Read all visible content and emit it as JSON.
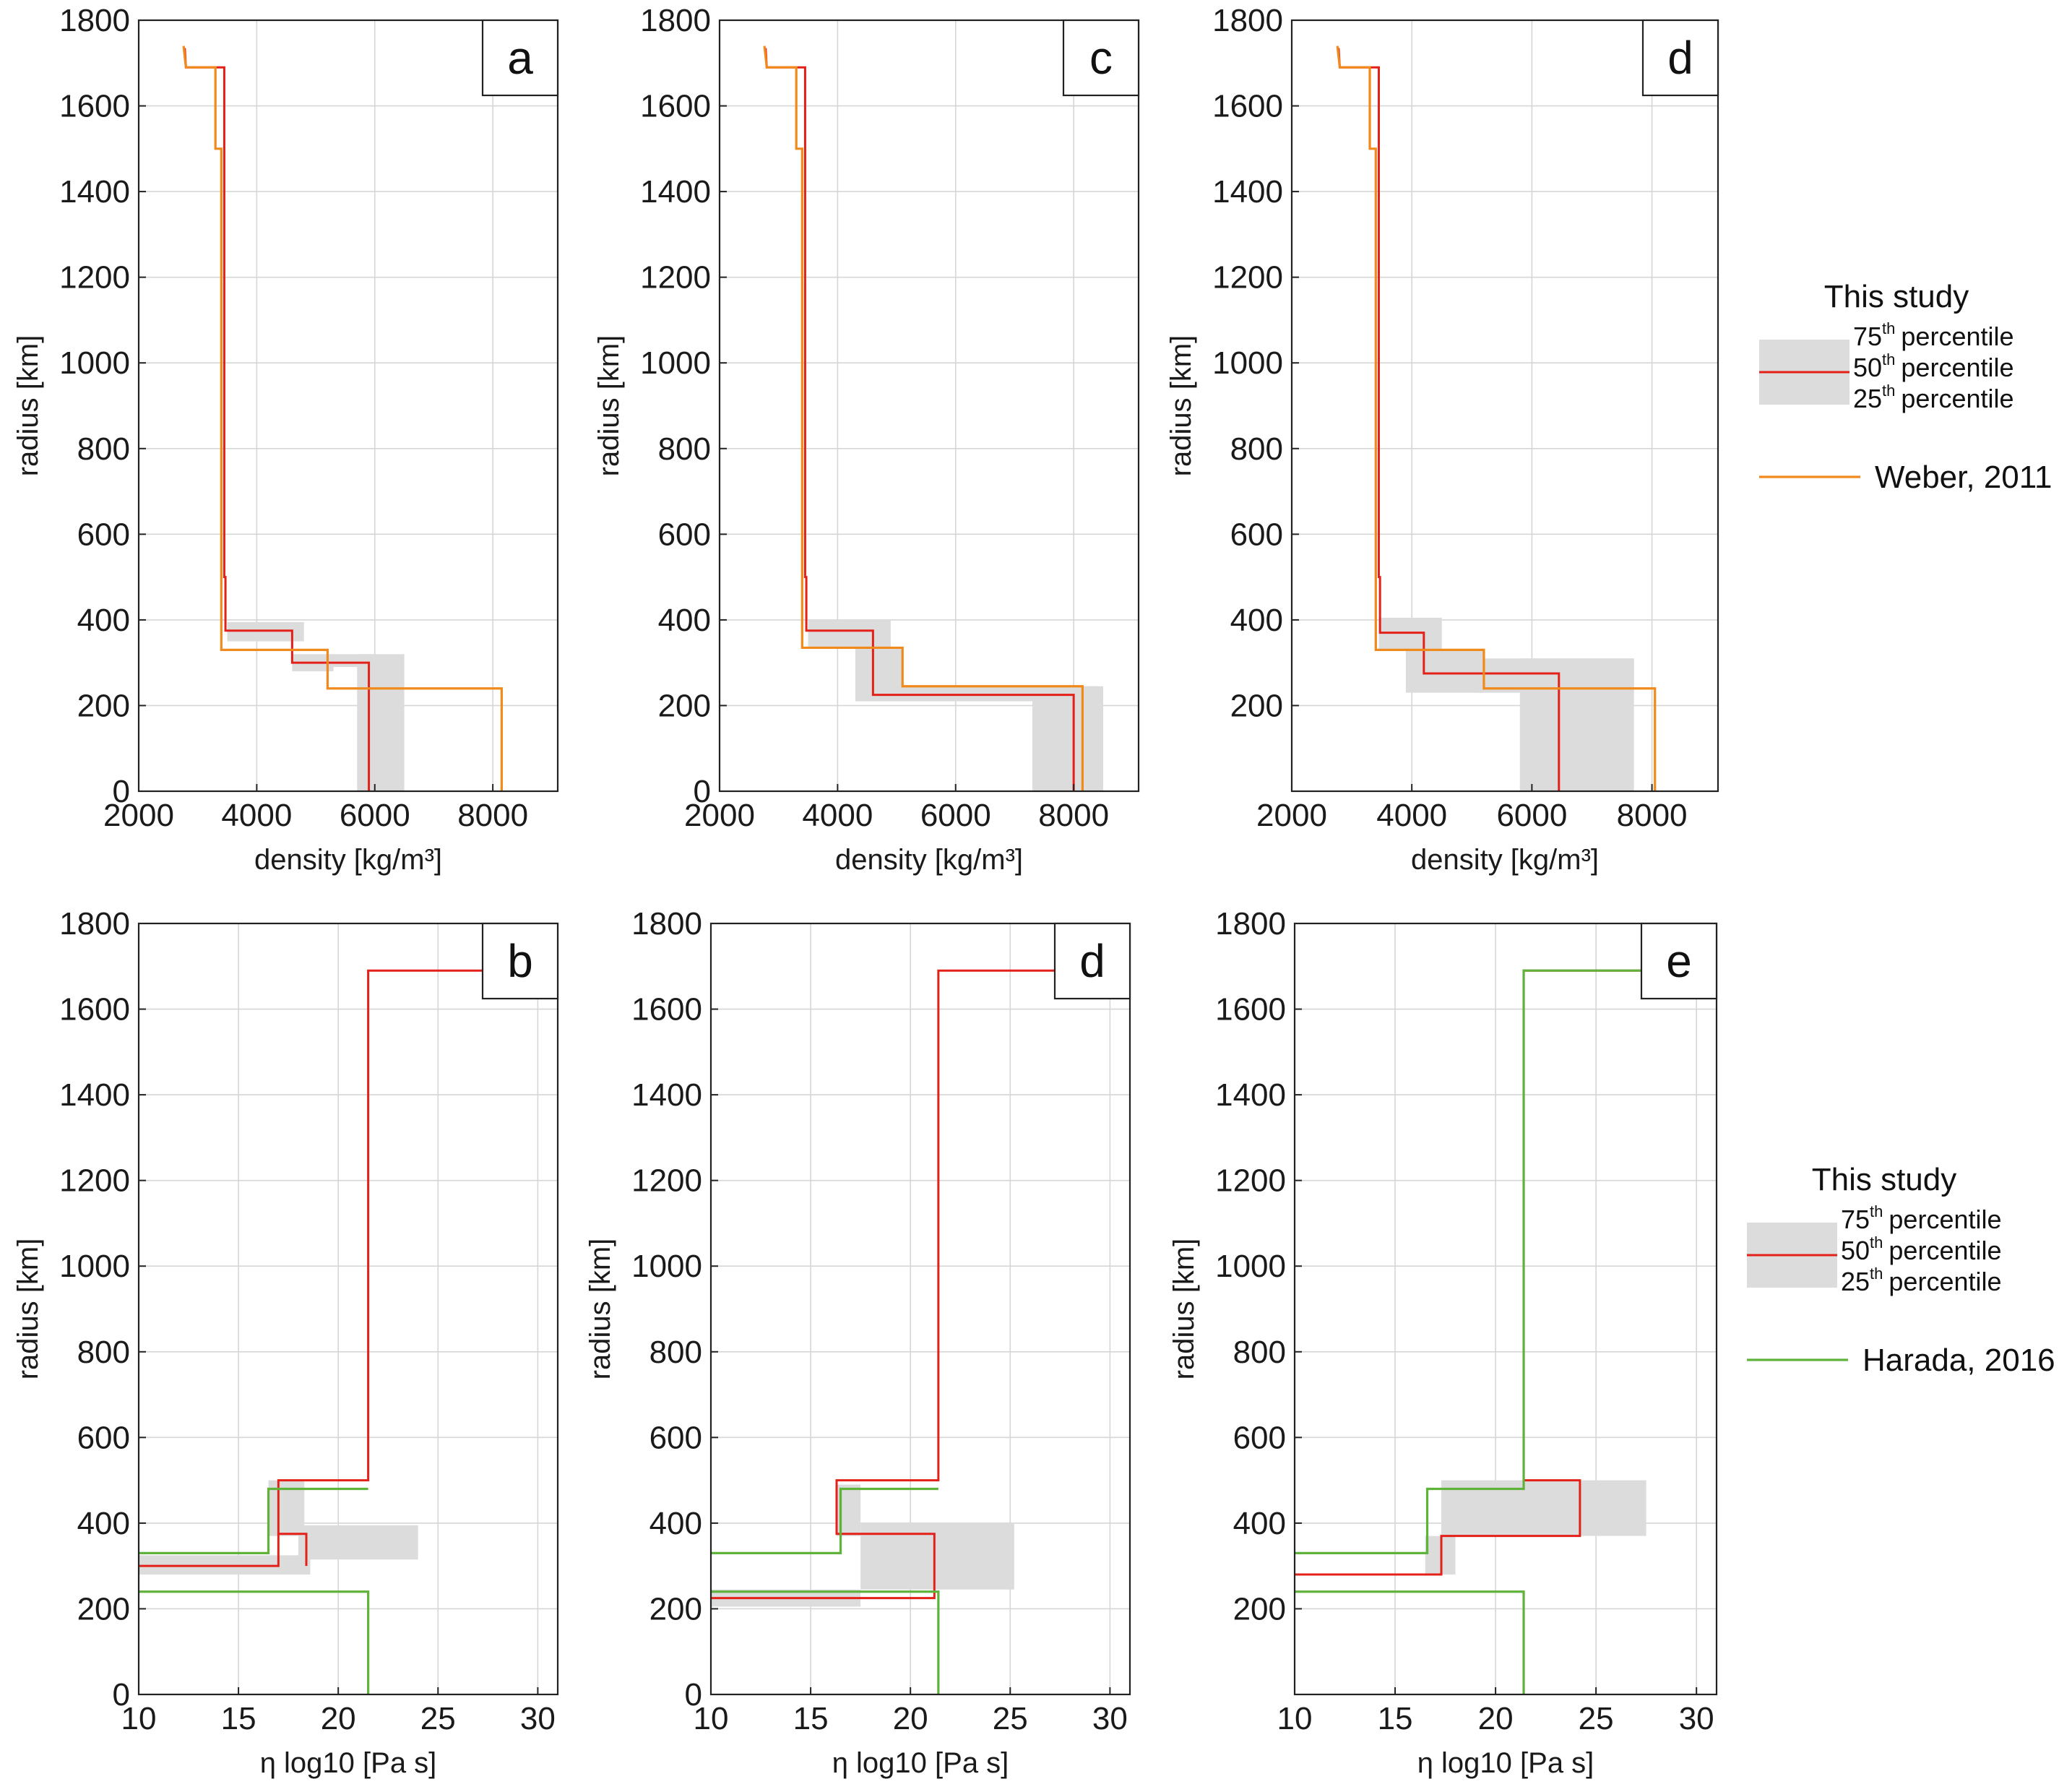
{
  "colors": {
    "median": "#e32119",
    "band": "#dcdcdc",
    "weber": "#f18a1c",
    "harada": "#5fb33b",
    "grid": "#d6d6d6",
    "axis": "#222222"
  },
  "legends": [
    {
      "title": "This study",
      "percentiles": [
        {
          "num": "75",
          "sup": "th",
          "text": "percentile"
        },
        {
          "num": "50",
          "sup": "th",
          "text": "percentile"
        },
        {
          "num": "25",
          "sup": "th",
          "text": "percentile"
        }
      ],
      "reference": "Weber, 2011",
      "reference_color_key": "weber"
    },
    {
      "title": "This study",
      "percentiles": [
        {
          "num": "75",
          "sup": "th",
          "text": "percentile"
        },
        {
          "num": "50",
          "sup": "th",
          "text": "percentile"
        },
        {
          "num": "25",
          "sup": "th",
          "text": "percentile"
        }
      ],
      "reference": "Harada, 2016",
      "reference_color_key": "harada"
    }
  ],
  "chart_data": [
    {
      "id": "a",
      "label": "a",
      "type": "line",
      "xlabel": "density [kg/m³]",
      "ylabel": "radius [km]",
      "xlim": [
        2000,
        9100
      ],
      "ylim": [
        0,
        1800
      ],
      "xticks": [
        2000,
        4000,
        6000,
        8000
      ],
      "yticks": [
        0,
        200,
        400,
        600,
        800,
        1000,
        1200,
        1400,
        1600,
        1800
      ],
      "grid": true,
      "bands": [
        [
          3500,
          4800,
          350,
          395
        ],
        [
          4600,
          5300,
          280,
          320
        ],
        [
          5200,
          6000,
          290,
          320
        ],
        [
          5700,
          6500,
          0,
          320
        ]
      ],
      "series": [
        {
          "color_key": "median",
          "points": [
            [
              2780,
              1735
            ],
            [
              2800,
              1690
            ],
            [
              3450,
              1690
            ],
            [
              3450,
              500
            ],
            [
              3470,
              500
            ],
            [
              3470,
              375
            ],
            [
              4600,
              375
            ],
            [
              4600,
              300
            ],
            [
              5900,
              300
            ],
            [
              5900,
              0
            ]
          ]
        },
        {
          "color_key": "weber",
          "points": [
            [
              2760,
              1740
            ],
            [
              2800,
              1690
            ],
            [
              3300,
              1690
            ],
            [
              3300,
              1500
            ],
            [
              3400,
              1500
            ],
            [
              3400,
              330
            ],
            [
              5200,
              330
            ],
            [
              5200,
              240
            ],
            [
              8150,
              240
            ],
            [
              8150,
              0
            ]
          ]
        }
      ]
    },
    {
      "id": "c",
      "label": "c",
      "type": "line",
      "xlabel": "density [kg/m³]",
      "ylabel": "radius [km]",
      "xlim": [
        2000,
        9100
      ],
      "ylim": [
        0,
        1800
      ],
      "xticks": [
        2000,
        4000,
        6000,
        8000
      ],
      "yticks": [
        0,
        200,
        400,
        600,
        800,
        1000,
        1200,
        1400,
        1600,
        1800
      ],
      "grid": true,
      "bands": [
        [
          3500,
          4900,
          335,
          400
        ],
        [
          4300,
          5100,
          210,
          335
        ],
        [
          5000,
          8400,
          210,
          245
        ],
        [
          7300,
          8500,
          0,
          245
        ]
      ],
      "series": [
        {
          "color_key": "median",
          "points": [
            [
              2780,
              1735
            ],
            [
              2800,
              1690
            ],
            [
              3450,
              1690
            ],
            [
              3450,
              500
            ],
            [
              3470,
              500
            ],
            [
              3470,
              375
            ],
            [
              4600,
              375
            ],
            [
              4600,
              225
            ],
            [
              8000,
              225
            ],
            [
              8000,
              0
            ]
          ]
        },
        {
          "color_key": "weber",
          "points": [
            [
              2760,
              1740
            ],
            [
              2800,
              1690
            ],
            [
              3300,
              1690
            ],
            [
              3300,
              1500
            ],
            [
              3400,
              1500
            ],
            [
              3400,
              335
            ],
            [
              5100,
              335
            ],
            [
              5100,
              245
            ],
            [
              8150,
              245
            ],
            [
              8150,
              0
            ]
          ]
        }
      ]
    },
    {
      "id": "d-top",
      "label": "d",
      "type": "line",
      "xlabel": "density [kg/m³]",
      "ylabel": "radius [km]",
      "xlim": [
        2000,
        9100
      ],
      "ylim": [
        0,
        1800
      ],
      "xticks": [
        2000,
        4000,
        6000,
        8000
      ],
      "yticks": [
        200,
        400,
        600,
        800,
        1000,
        1200,
        1400,
        1600,
        1800
      ],
      "grid": true,
      "bands": [
        [
          3450,
          4500,
          330,
          405
        ],
        [
          3900,
          5200,
          230,
          330
        ],
        [
          5000,
          7700,
          230,
          310
        ],
        [
          5800,
          7700,
          0,
          310
        ]
      ],
      "series": [
        {
          "color_key": "median",
          "points": [
            [
              2780,
              1735
            ],
            [
              2800,
              1690
            ],
            [
              3450,
              1690
            ],
            [
              3450,
              500
            ],
            [
              3470,
              500
            ],
            [
              3470,
              370
            ],
            [
              4200,
              370
            ],
            [
              4200,
              275
            ],
            [
              6450,
              275
            ],
            [
              6450,
              0
            ]
          ]
        },
        {
          "color_key": "weber",
          "points": [
            [
              2760,
              1740
            ],
            [
              2800,
              1690
            ],
            [
              3300,
              1690
            ],
            [
              3300,
              1500
            ],
            [
              3400,
              1500
            ],
            [
              3400,
              330
            ],
            [
              5200,
              330
            ],
            [
              5200,
              240
            ],
            [
              8050,
              240
            ],
            [
              8050,
              0
            ]
          ]
        }
      ]
    },
    {
      "id": "b",
      "label": "b",
      "type": "line",
      "xlabel": "η log10 [Pa s]",
      "ylabel": "radius [km]",
      "xlim": [
        10,
        31
      ],
      "ylim": [
        0,
        1800
      ],
      "xticks": [
        10,
        15,
        20,
        25,
        30
      ],
      "yticks": [
        0,
        200,
        400,
        600,
        800,
        1000,
        1200,
        1400,
        1600,
        1800
      ],
      "grid": true,
      "bands": [
        [
          16.5,
          18.3,
          370,
          500
        ],
        [
          18.0,
          24.0,
          315,
          395
        ],
        [
          10,
          18.6,
          280,
          325
        ]
      ],
      "series": [
        {
          "color_key": "median",
          "points": [
            [
              10,
              300
            ],
            [
              17.0,
              300
            ],
            [
              17.0,
              500
            ],
            [
              21.5,
              500
            ],
            [
              21.5,
              1690
            ],
            [
              31,
              1690
            ]
          ]
        },
        {
          "color_key": "median",
          "points": [
            [
              17.0,
              375
            ],
            [
              18.4,
              375
            ],
            [
              18.4,
              300
            ]
          ]
        },
        {
          "color_key": "harada",
          "points": [
            [
              10,
              330
            ],
            [
              16.5,
              330
            ],
            [
              16.5,
              480
            ],
            [
              21.5,
              480
            ]
          ]
        },
        {
          "color_key": "harada",
          "points": [
            [
              10,
              240
            ],
            [
              21.5,
              240
            ],
            [
              21.5,
              0
            ]
          ]
        }
      ]
    },
    {
      "id": "d-bottom",
      "label": "d",
      "type": "line",
      "xlabel": "η log10 [Pa s]",
      "ylabel": "radius [km]",
      "xlim": [
        10,
        31
      ],
      "ylim": [
        0,
        1800
      ],
      "xticks": [
        10,
        15,
        20,
        25,
        30
      ],
      "yticks": [
        0,
        200,
        400,
        600,
        800,
        1000,
        1200,
        1400,
        1600,
        1800
      ],
      "grid": true,
      "bands": [
        [
          16.3,
          17.5,
          370,
          490
        ],
        [
          17.5,
          25.2,
          245,
          400
        ],
        [
          10,
          17.5,
          205,
          245
        ]
      ],
      "series": [
        {
          "color_key": "median",
          "points": [
            [
              10,
              225
            ],
            [
              21.2,
              225
            ],
            [
              21.2,
              375
            ],
            [
              16.3,
              375
            ],
            [
              16.3,
              500
            ],
            [
              21.4,
              500
            ],
            [
              21.4,
              1690
            ],
            [
              31,
              1690
            ]
          ]
        },
        {
          "color_key": "harada",
          "points": [
            [
              10,
              330
            ],
            [
              16.5,
              330
            ],
            [
              16.5,
              480
            ],
            [
              21.4,
              480
            ]
          ]
        },
        {
          "color_key": "harada",
          "points": [
            [
              10,
              240
            ],
            [
              21.4,
              240
            ],
            [
              21.4,
              0
            ]
          ]
        }
      ]
    },
    {
      "id": "e",
      "label": "e",
      "type": "line",
      "xlabel": "η log10 [Pa s]",
      "ylabel": "radius [km]",
      "xlim": [
        10,
        31
      ],
      "ylim": [
        0,
        1800
      ],
      "xticks": [
        10,
        15,
        20,
        25,
        30
      ],
      "yticks": [
        200,
        400,
        600,
        800,
        1000,
        1200,
        1400,
        1600,
        1800
      ],
      "grid": true,
      "bands": [
        [
          17.3,
          27.5,
          370,
          500
        ],
        [
          16.5,
          18.0,
          280,
          370
        ]
      ],
      "series": [
        {
          "color_key": "median",
          "points": [
            [
              10,
              280
            ],
            [
              17.3,
              280
            ],
            [
              17.3,
              370
            ],
            [
              24.2,
              370
            ],
            [
              24.2,
              500
            ],
            [
              21.4,
              500
            ],
            [
              21.4,
              1690
            ],
            [
              31,
              1690
            ]
          ]
        },
        {
          "color_key": "harada",
          "points": [
            [
              10,
              330
            ],
            [
              16.6,
              330
            ],
            [
              16.6,
              480
            ],
            [
              21.4,
              480
            ],
            [
              21.4,
              1690
            ],
            [
              31,
              1690
            ]
          ]
        },
        {
          "color_key": "harada",
          "points": [
            [
              10,
              240
            ],
            [
              21.4,
              240
            ],
            [
              21.4,
              0
            ]
          ]
        }
      ]
    }
  ]
}
